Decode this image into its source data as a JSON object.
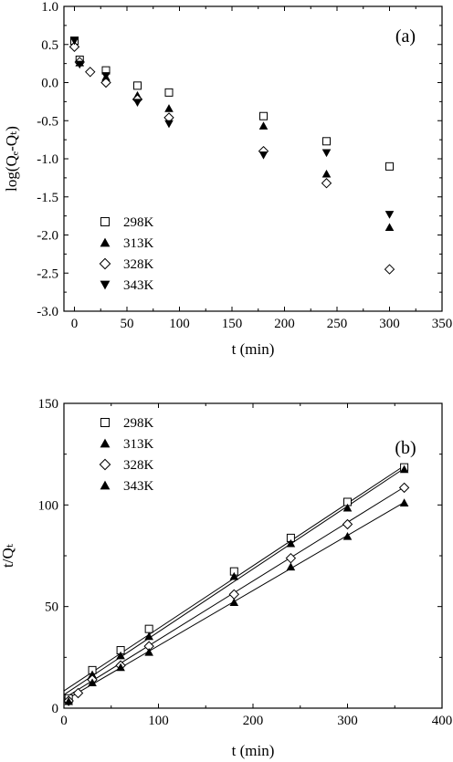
{
  "chart_data": [
    {
      "type": "scatter",
      "panel_label": "(a)",
      "xlabel": "t (min)",
      "ylabel": "log(Qₑ-Qₜ)",
      "xlim": [
        -10,
        350
      ],
      "ylim": [
        -3.0,
        1.0
      ],
      "xticks": [
        0,
        50,
        100,
        150,
        200,
        250,
        300,
        350
      ],
      "yticks": [
        -3.0,
        -2.5,
        -2.0,
        -1.5,
        -1.0,
        -0.5,
        0.0,
        0.5,
        1.0
      ],
      "ytick_labels": [
        "-3.0",
        "-2.5",
        "-2.0",
        "-1.5",
        "-1.0",
        "-0.5",
        "0.0",
        "0.5",
        "1.0"
      ],
      "legend_position": "bottom-left",
      "series": [
        {
          "name": "298K",
          "marker": "square-open",
          "points": [
            [
              0,
              0.55
            ],
            [
              5,
              0.3
            ],
            [
              30,
              0.16
            ],
            [
              60,
              -0.04
            ],
            [
              90,
              -0.13
            ],
            [
              180,
              -0.44
            ],
            [
              240,
              -0.77
            ],
            [
              300,
              -1.1
            ]
          ]
        },
        {
          "name": "313K",
          "marker": "triangle-up-filled",
          "points": [
            [
              0,
              0.5
            ],
            [
              5,
              0.26
            ],
            [
              30,
              0.07
            ],
            [
              60,
              -0.17
            ],
            [
              90,
              -0.34
            ],
            [
              180,
              -0.57
            ],
            [
              240,
              -1.2
            ],
            [
              300,
              -1.9
            ]
          ]
        },
        {
          "name": "328K",
          "marker": "diamond-open",
          "points": [
            [
              0,
              0.47
            ],
            [
              5,
              0.27
            ],
            [
              15,
              0.14
            ],
            [
              30,
              0.0
            ],
            [
              60,
              -0.22
            ],
            [
              90,
              -0.46
            ],
            [
              180,
              -0.9
            ],
            [
              240,
              -1.32
            ],
            [
              300,
              -2.45
            ]
          ]
        },
        {
          "name": "343K",
          "marker": "triangle-down-filled",
          "points": [
            [
              0,
              0.55
            ],
            [
              5,
              0.24
            ],
            [
              30,
              0.09
            ],
            [
              60,
              -0.26
            ],
            [
              90,
              -0.54
            ],
            [
              180,
              -0.95
            ],
            [
              240,
              -0.92
            ],
            [
              300,
              -1.73
            ]
          ]
        }
      ]
    },
    {
      "type": "scatter",
      "panel_label": "(b)",
      "xlabel": "t (min)",
      "ylabel": "t/Qₜ",
      "xlim": [
        0,
        400
      ],
      "ylim": [
        0,
        150
      ],
      "xticks": [
        0,
        100,
        200,
        300,
        400
      ],
      "yticks": [
        0,
        50,
        100,
        150
      ],
      "ytick_labels": [
        "0",
        "50",
        "100",
        "150"
      ],
      "legend_position": "top-left",
      "series": [
        {
          "name": "298K",
          "marker": "square-open",
          "points": [
            [
              5,
              4.8
            ],
            [
              30,
              18.7
            ],
            [
              60,
              28.5
            ],
            [
              90,
              39
            ],
            [
              180,
              67.3
            ],
            [
              240,
              83.8
            ],
            [
              300,
              101.5
            ],
            [
              360,
              118.5
            ]
          ],
          "fit": [
            [
              0,
              8.5
            ],
            [
              360,
              119.3
            ]
          ]
        },
        {
          "name": "313K",
          "marker": "triangle-up-filled",
          "points": [
            [
              5,
              4.2
            ],
            [
              30,
              16.5
            ],
            [
              60,
              25.8
            ],
            [
              90,
              35.3
            ],
            [
              180,
              64.8
            ],
            [
              240,
              81
            ],
            [
              300,
              98.5
            ],
            [
              360,
              117.5
            ]
          ],
          "fit": [
            [
              0,
              6.6
            ],
            [
              360,
              118
            ]
          ]
        },
        {
          "name": "328K",
          "marker": "diamond-open",
          "points": [
            [
              5,
              3.6
            ],
            [
              15,
              7.4
            ],
            [
              30,
              14
            ],
            [
              60,
              21
            ],
            [
              90,
              30.5
            ],
            [
              180,
              56
            ],
            [
              240,
              73.8
            ],
            [
              300,
              90.5
            ],
            [
              360,
              108.5
            ]
          ],
          "fit": [
            [
              0,
              4.8
            ],
            [
              360,
              108.8
            ]
          ]
        },
        {
          "name": "343K",
          "marker": "triangle-up-filled",
          "points": [
            [
              5,
              3.3
            ],
            [
              30,
              12.5
            ],
            [
              60,
              20
            ],
            [
              90,
              27.5
            ],
            [
              180,
              52
            ],
            [
              240,
              69.5
            ],
            [
              300,
              84.5
            ],
            [
              360,
              101
            ]
          ],
          "fit": [
            [
              0,
              3.6
            ],
            [
              360,
              101.3
            ]
          ]
        }
      ]
    }
  ]
}
